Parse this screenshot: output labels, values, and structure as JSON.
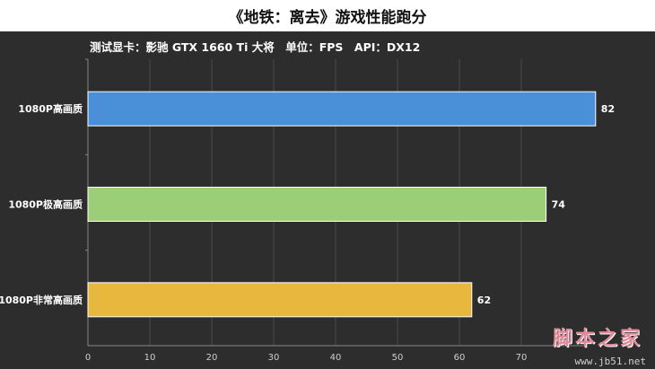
{
  "chart_data": {
    "type": "bar",
    "orientation": "horizontal",
    "title": "《地铁：离去》游戏性能跑分",
    "subtitle": "测试显卡：影驰 GTX 1660 Ti 大将　单位：FPS　API：DX12",
    "categories": [
      "1080P高画质",
      "1080P极高画质",
      "1080P非常高画质"
    ],
    "values": [
      82,
      74,
      62
    ],
    "colors": [
      "#4a90d9",
      "#9ccd77",
      "#e8b83e"
    ],
    "xlim": [
      0,
      80
    ],
    "xticks": [
      0,
      10,
      20,
      30,
      40,
      50,
      60,
      70
    ],
    "grid": true
  },
  "watermark": {
    "text": "脚本之家",
    "url": "www.jb51.net"
  }
}
